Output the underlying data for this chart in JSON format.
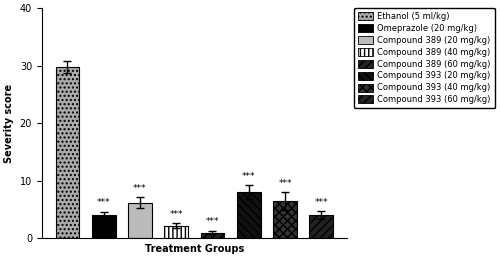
{
  "values": [
    29.8,
    4.0,
    6.2,
    2.2,
    1.0,
    8.0,
    6.5,
    4.0
  ],
  "errors": [
    1.0,
    0.6,
    0.9,
    0.4,
    0.3,
    1.2,
    1.5,
    0.7
  ],
  "significance": [
    "",
    "***",
    "***",
    "***",
    "***",
    "***",
    "***",
    "***"
  ],
  "legend_labels": [
    "Ethanol (5 ml/kg)",
    "Omeprazole (20 mg/kg)",
    "Compound 389 (20 mg/kg)",
    "Compound 389 (40 mg/kg)",
    "Compound 389 (60 mg/kg)",
    "Compound 393 (20 mg/kg)",
    "Compound 393 (40 mg/kg)",
    "Compound 393 (60 mg/kg)"
  ],
  "bar_facecolors": [
    "#aaaaaa",
    "#555555",
    "#cccccc",
    "#ffffff",
    "#333333",
    "#333333",
    "#555555",
    "#333333"
  ],
  "bar_edgecolor": "#000000",
  "ylim": [
    0,
    40
  ],
  "yticks": [
    0,
    10,
    20,
    30,
    40
  ],
  "ylabel": "Severity score",
  "xlabel": "Treatment Groups",
  "figsize": [
    5.0,
    2.58
  ],
  "dpi": 100
}
